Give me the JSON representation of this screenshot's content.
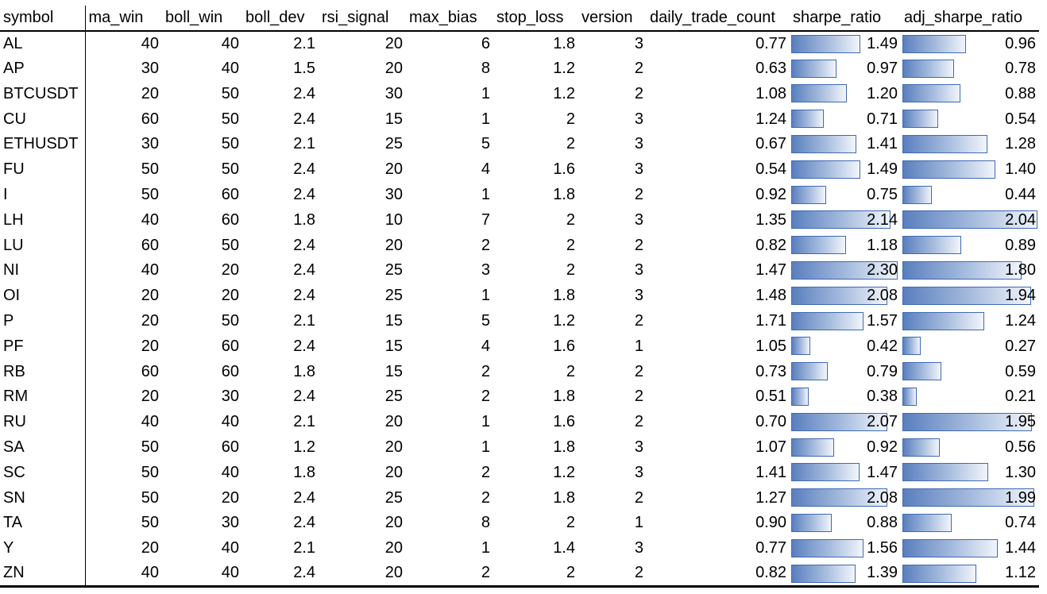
{
  "columns": [
    "symbol",
    "ma_win",
    "boll_win",
    "boll_dev",
    "rsi_signal",
    "max_bias",
    "stop_loss",
    "version",
    "daily_trade_count",
    "sharpe_ratio",
    "adj_sharpe_ratio"
  ],
  "data_bar_color": "#5A7FBE",
  "data_bar_border": "#3F6AB3",
  "sharpe_max": 2.3,
  "adj_sharpe_max": 2.04,
  "rows": [
    {
      "symbol": "AL",
      "ma_win": "40",
      "boll_win": "40",
      "boll_dev": "2.1",
      "rsi_signal": "20",
      "max_bias": "6",
      "stop_loss": "1.8",
      "version": "3",
      "daily_trade_count": "0.77",
      "sharpe_ratio": "1.49",
      "adj_sharpe_ratio": "0.96"
    },
    {
      "symbol": "AP",
      "ma_win": "30",
      "boll_win": "40",
      "boll_dev": "1.5",
      "rsi_signal": "20",
      "max_bias": "8",
      "stop_loss": "1.2",
      "version": "2",
      "daily_trade_count": "0.63",
      "sharpe_ratio": "0.97",
      "adj_sharpe_ratio": "0.78"
    },
    {
      "symbol": "BTCUSDT",
      "ma_win": "20",
      "boll_win": "50",
      "boll_dev": "2.4",
      "rsi_signal": "30",
      "max_bias": "1",
      "stop_loss": "1.2",
      "version": "2",
      "daily_trade_count": "1.08",
      "sharpe_ratio": "1.20",
      "adj_sharpe_ratio": "0.88"
    },
    {
      "symbol": "CU",
      "ma_win": "60",
      "boll_win": "50",
      "boll_dev": "2.4",
      "rsi_signal": "15",
      "max_bias": "1",
      "stop_loss": "2",
      "version": "3",
      "daily_trade_count": "1.24",
      "sharpe_ratio": "0.71",
      "adj_sharpe_ratio": "0.54"
    },
    {
      "symbol": "ETHUSDT",
      "ma_win": "30",
      "boll_win": "50",
      "boll_dev": "2.1",
      "rsi_signal": "25",
      "max_bias": "5",
      "stop_loss": "2",
      "version": "3",
      "daily_trade_count": "0.67",
      "sharpe_ratio": "1.41",
      "adj_sharpe_ratio": "1.28"
    },
    {
      "symbol": "FU",
      "ma_win": "50",
      "boll_win": "50",
      "boll_dev": "2.4",
      "rsi_signal": "20",
      "max_bias": "4",
      "stop_loss": "1.6",
      "version": "3",
      "daily_trade_count": "0.54",
      "sharpe_ratio": "1.49",
      "adj_sharpe_ratio": "1.40"
    },
    {
      "symbol": "I",
      "ma_win": "50",
      "boll_win": "60",
      "boll_dev": "2.4",
      "rsi_signal": "30",
      "max_bias": "1",
      "stop_loss": "1.8",
      "version": "2",
      "daily_trade_count": "0.92",
      "sharpe_ratio": "0.75",
      "adj_sharpe_ratio": "0.44"
    },
    {
      "symbol": "LH",
      "ma_win": "40",
      "boll_win": "60",
      "boll_dev": "1.8",
      "rsi_signal": "10",
      "max_bias": "7",
      "stop_loss": "2",
      "version": "3",
      "daily_trade_count": "1.35",
      "sharpe_ratio": "2.14",
      "adj_sharpe_ratio": "2.04"
    },
    {
      "symbol": "LU",
      "ma_win": "60",
      "boll_win": "50",
      "boll_dev": "2.4",
      "rsi_signal": "20",
      "max_bias": "2",
      "stop_loss": "2",
      "version": "2",
      "daily_trade_count": "0.82",
      "sharpe_ratio": "1.18",
      "adj_sharpe_ratio": "0.89"
    },
    {
      "symbol": "NI",
      "ma_win": "40",
      "boll_win": "20",
      "boll_dev": "2.4",
      "rsi_signal": "25",
      "max_bias": "3",
      "stop_loss": "2",
      "version": "3",
      "daily_trade_count": "1.47",
      "sharpe_ratio": "2.30",
      "adj_sharpe_ratio": "1.80"
    },
    {
      "symbol": "OI",
      "ma_win": "20",
      "boll_win": "20",
      "boll_dev": "2.4",
      "rsi_signal": "25",
      "max_bias": "1",
      "stop_loss": "1.8",
      "version": "3",
      "daily_trade_count": "1.48",
      "sharpe_ratio": "2.08",
      "adj_sharpe_ratio": "1.94"
    },
    {
      "symbol": "P",
      "ma_win": "20",
      "boll_win": "50",
      "boll_dev": "2.1",
      "rsi_signal": "15",
      "max_bias": "5",
      "stop_loss": "1.2",
      "version": "2",
      "daily_trade_count": "1.71",
      "sharpe_ratio": "1.57",
      "adj_sharpe_ratio": "1.24"
    },
    {
      "symbol": "PF",
      "ma_win": "20",
      "boll_win": "60",
      "boll_dev": "2.4",
      "rsi_signal": "15",
      "max_bias": "4",
      "stop_loss": "1.6",
      "version": "1",
      "daily_trade_count": "1.05",
      "sharpe_ratio": "0.42",
      "adj_sharpe_ratio": "0.27"
    },
    {
      "symbol": "RB",
      "ma_win": "60",
      "boll_win": "60",
      "boll_dev": "1.8",
      "rsi_signal": "15",
      "max_bias": "2",
      "stop_loss": "2",
      "version": "2",
      "daily_trade_count": "0.73",
      "sharpe_ratio": "0.79",
      "adj_sharpe_ratio": "0.59"
    },
    {
      "symbol": "RM",
      "ma_win": "20",
      "boll_win": "30",
      "boll_dev": "2.4",
      "rsi_signal": "25",
      "max_bias": "2",
      "stop_loss": "1.8",
      "version": "2",
      "daily_trade_count": "0.51",
      "sharpe_ratio": "0.38",
      "adj_sharpe_ratio": "0.21"
    },
    {
      "symbol": "RU",
      "ma_win": "40",
      "boll_win": "40",
      "boll_dev": "2.1",
      "rsi_signal": "20",
      "max_bias": "1",
      "stop_loss": "1.6",
      "version": "2",
      "daily_trade_count": "0.70",
      "sharpe_ratio": "2.07",
      "adj_sharpe_ratio": "1.95"
    },
    {
      "symbol": "SA",
      "ma_win": "50",
      "boll_win": "60",
      "boll_dev": "1.2",
      "rsi_signal": "20",
      "max_bias": "1",
      "stop_loss": "1.8",
      "version": "3",
      "daily_trade_count": "1.07",
      "sharpe_ratio": "0.92",
      "adj_sharpe_ratio": "0.56"
    },
    {
      "symbol": "SC",
      "ma_win": "50",
      "boll_win": "40",
      "boll_dev": "1.8",
      "rsi_signal": "20",
      "max_bias": "2",
      "stop_loss": "1.2",
      "version": "3",
      "daily_trade_count": "1.41",
      "sharpe_ratio": "1.47",
      "adj_sharpe_ratio": "1.30"
    },
    {
      "symbol": "SN",
      "ma_win": "50",
      "boll_win": "20",
      "boll_dev": "2.4",
      "rsi_signal": "25",
      "max_bias": "2",
      "stop_loss": "1.8",
      "version": "2",
      "daily_trade_count": "1.27",
      "sharpe_ratio": "2.08",
      "adj_sharpe_ratio": "1.99"
    },
    {
      "symbol": "TA",
      "ma_win": "50",
      "boll_win": "30",
      "boll_dev": "2.4",
      "rsi_signal": "20",
      "max_bias": "8",
      "stop_loss": "2",
      "version": "1",
      "daily_trade_count": "0.90",
      "sharpe_ratio": "0.88",
      "adj_sharpe_ratio": "0.74"
    },
    {
      "symbol": "Y",
      "ma_win": "20",
      "boll_win": "40",
      "boll_dev": "2.1",
      "rsi_signal": "20",
      "max_bias": "1",
      "stop_loss": "1.4",
      "version": "3",
      "daily_trade_count": "0.77",
      "sharpe_ratio": "1.56",
      "adj_sharpe_ratio": "1.44"
    },
    {
      "symbol": "ZN",
      "ma_win": "40",
      "boll_win": "40",
      "boll_dev": "2.4",
      "rsi_signal": "20",
      "max_bias": "2",
      "stop_loss": "2",
      "version": "2",
      "daily_trade_count": "0.82",
      "sharpe_ratio": "1.39",
      "adj_sharpe_ratio": "1.12"
    }
  ]
}
